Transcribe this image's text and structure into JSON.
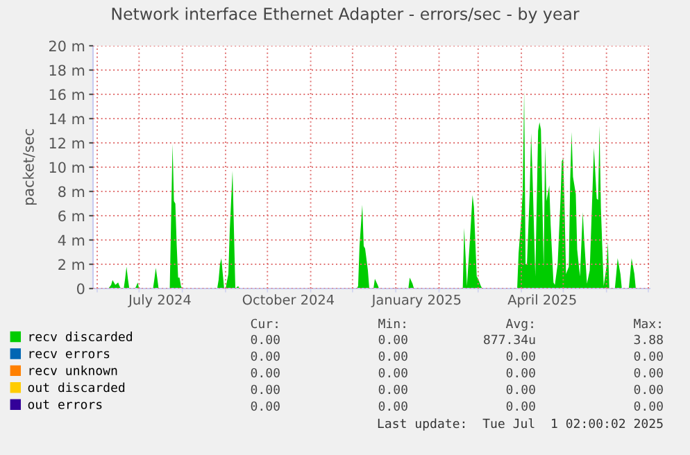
{
  "chart_data": {
    "type": "area",
    "title": "Network interface Ethernet Adapter - errors/sec - by year",
    "ylabel": "packet/sec",
    "series": [
      {
        "name": "recv discarded",
        "color": "#00cc00",
        "x": [
          "2024-06-09",
          "2024-06-11",
          "2024-06-12",
          "2024-06-14",
          "2024-06-16",
          "2024-06-17",
          "2024-06-18",
          "2024-06-20",
          "2024-06-21",
          "2024-06-22",
          "2024-06-23",
          "2024-06-24",
          "2024-06-28",
          "2024-06-29",
          "2024-06-30",
          "2024-07-01",
          "2024-07-11",
          "2024-07-12",
          "2024-07-13",
          "2024-07-14",
          "2024-07-15",
          "2024-07-23",
          "2024-07-24",
          "2024-07-25",
          "2024-07-26",
          "2024-07-27",
          "2024-07-28",
          "2024-07-29",
          "2024-07-30",
          "2024-07-31",
          "2024-08-01",
          "2024-08-26",
          "2024-08-27",
          "2024-08-28",
          "2024-08-29",
          "2024-08-30",
          "2024-08-31",
          "2024-09-01",
          "2024-09-02",
          "2024-09-03",
          "2024-09-04",
          "2024-09-06",
          "2024-09-07",
          "2024-09-08",
          "2024-09-10",
          "2024-09-11",
          "2024-12-04",
          "2024-12-05",
          "2024-12-06",
          "2024-12-08",
          "2024-12-09",
          "2024-12-10",
          "2024-12-12",
          "2024-12-13",
          "2024-12-16",
          "2024-12-17",
          "2024-12-19",
          "2024-12-20",
          "2025-01-10",
          "2025-01-11",
          "2025-01-13",
          "2025-01-14",
          "2025-02-18",
          "2025-02-19",
          "2025-02-20",
          "2025-02-21",
          "2025-02-23",
          "2025-02-25",
          "2025-02-26",
          "2025-02-28",
          "2025-03-01",
          "2025-03-03",
          "2025-03-04",
          "2025-03-29",
          "2025-03-30",
          "2025-04-01",
          "2025-04-02",
          "2025-04-03",
          "2025-04-04",
          "2025-04-05",
          "2025-04-07",
          "2025-04-08",
          "2025-04-09",
          "2025-04-11",
          "2025-04-13",
          "2025-04-14",
          "2025-04-15",
          "2025-04-17",
          "2025-04-18",
          "2025-04-19",
          "2025-04-21",
          "2025-04-22",
          "2025-04-24",
          "2025-04-25",
          "2025-04-27",
          "2025-04-29",
          "2025-04-30",
          "2025-05-01",
          "2025-05-02",
          "2025-05-03",
          "2025-05-05",
          "2025-05-06",
          "2025-05-07",
          "2025-05-08",
          "2025-05-10",
          "2025-05-11",
          "2025-05-13",
          "2025-05-15",
          "2025-05-16",
          "2025-05-18",
          "2025-05-20",
          "2025-05-22",
          "2025-05-23",
          "2025-05-25",
          "2025-05-26",
          "2025-05-27",
          "2025-05-28",
          "2025-05-30",
          "2025-06-01",
          "2025-06-02",
          "2025-06-03",
          "2025-06-07",
          "2025-06-08",
          "2025-06-09",
          "2025-06-11",
          "2025-06-12",
          "2025-06-17",
          "2025-06-18",
          "2025-06-19",
          "2025-06-21",
          "2025-06-22"
        ],
        "values": [
          0,
          0.3,
          0.7,
          0.3,
          0.5,
          0.2,
          0,
          0,
          0.8,
          1.8,
          0.8,
          0,
          0,
          0.2,
          0.5,
          0,
          0,
          0.8,
          1.7,
          0.9,
          0,
          0,
          6.0,
          11.9,
          7.2,
          7.0,
          3.5,
          0.9,
          0.9,
          0.2,
          0,
          0,
          0.7,
          2.0,
          2.5,
          1.2,
          0,
          0,
          0.6,
          1.2,
          4.8,
          9.7,
          4.8,
          0,
          0.2,
          0,
          0,
          0.2,
          3.5,
          6.9,
          3.5,
          3.3,
          1.5,
          0,
          0,
          0.8,
          0.3,
          0,
          0,
          0.9,
          0.4,
          0,
          0,
          5.0,
          2.7,
          0.2,
          3.8,
          7.7,
          6.7,
          1.0,
          0.8,
          0.2,
          0,
          0,
          2.9,
          5.9,
          8.1,
          16.3,
          2.0,
          2.0,
          8.0,
          12.8,
          9.3,
          1.0,
          13.0,
          13.7,
          13.1,
          1.7,
          11.8,
          7.2,
          8.5,
          5.2,
          0.5,
          0.3,
          2.0,
          7.2,
          10.5,
          10.7,
          6.4,
          1.2,
          1.8,
          9.0,
          12.9,
          9.2,
          7.8,
          3.2,
          1.0,
          6.3,
          4.1,
          0.4,
          1.5,
          8.2,
          11.6,
          7.4,
          7.3,
          13.4,
          6.6,
          0.2,
          1.8,
          3.8,
          0,
          0,
          1.2,
          2.5,
          1.2,
          0,
          0,
          1.2,
          2.5,
          1.2,
          0
        ]
      },
      {
        "name": "recv errors",
        "color": "#0066b3"
      },
      {
        "name": "recv unknown",
        "color": "#ff8000"
      },
      {
        "name": "out discarded",
        "color": "#ffcc00"
      },
      {
        "name": "out errors",
        "color": "#330099"
      }
    ],
    "xlim": [
      "2024-05-29",
      "2025-07-02"
    ],
    "xticks": [
      {
        "value": "2024-06-01",
        "label": null
      },
      {
        "value": "2024-07-01",
        "label": null
      },
      {
        "value": "2024-07-16",
        "label": "July 2024"
      },
      {
        "value": "2024-08-01",
        "label": null
      },
      {
        "value": "2024-09-01",
        "label": null
      },
      {
        "value": "2024-10-01",
        "label": null
      },
      {
        "value": "2024-10-16",
        "label": "October 2024"
      },
      {
        "value": "2024-11-01",
        "label": null
      },
      {
        "value": "2024-12-01",
        "label": null
      },
      {
        "value": "2025-01-01",
        "label": null
      },
      {
        "value": "2025-01-16",
        "label": "January 2025"
      },
      {
        "value": "2025-02-01",
        "label": null
      },
      {
        "value": "2025-03-01",
        "label": null
      },
      {
        "value": "2025-04-01",
        "label": null
      },
      {
        "value": "2025-04-16",
        "label": "April 2025"
      },
      {
        "value": "2025-05-01",
        "label": null
      },
      {
        "value": "2025-06-01",
        "label": null
      },
      {
        "value": "2025-07-01",
        "label": null
      }
    ],
    "ylim": [
      0,
      20
    ],
    "yticks": [
      0,
      {
        "value": 2,
        "label": "2 m"
      },
      {
        "value": 4,
        "label": "4 m"
      },
      {
        "value": 6,
        "label": "6 m"
      },
      {
        "value": 8,
        "label": "8 m"
      },
      {
        "value": 10,
        "label": "10 m"
      },
      {
        "value": 12,
        "label": "12 m"
      },
      {
        "value": 14,
        "label": "14 m"
      },
      {
        "value": 16,
        "label": "16 m"
      },
      {
        "value": 18,
        "label": "18 m"
      },
      {
        "value": 20,
        "label": "20 m"
      }
    ],
    "grid": true,
    "legend": "bottom left",
    "annotations": [
      "Cur:",
      "Min:",
      "Avg:",
      "Max:",
      "0.00",
      "0.00",
      "877.34u",
      "3.88",
      "0.00",
      "0.00",
      "0.00",
      "0.00",
      "0.00",
      "0.00",
      "0.00",
      "0.00",
      "0.00",
      "0.00",
      "0.00",
      "0.00",
      "0.00",
      "0.00",
      "0.00",
      "0.00",
      "Last update:  Tue Jul  1 02:00:02 2025"
    ]
  }
}
